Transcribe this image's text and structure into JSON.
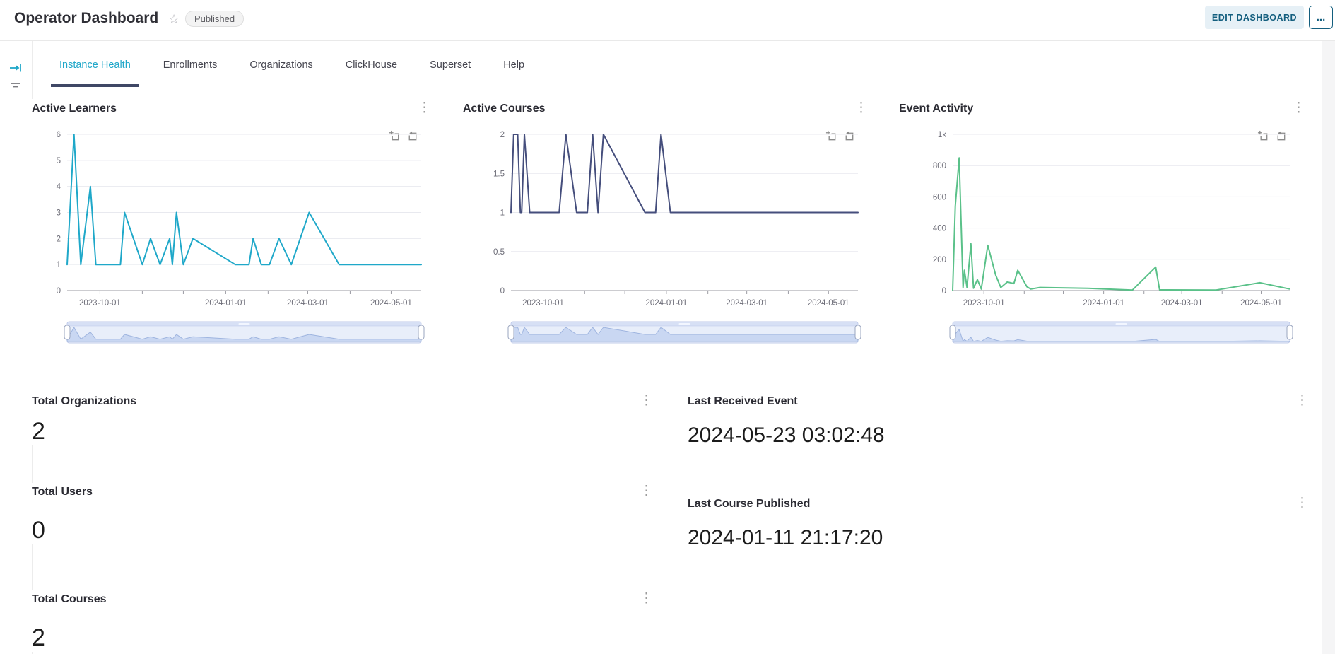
{
  "header": {
    "title": "Operator Dashboard",
    "status_badge": "Published",
    "edit_button": "EDIT DASHBOARD",
    "more_button": "..."
  },
  "icons": {
    "kebab": "⋮",
    "star": "☆"
  },
  "tabs": [
    {
      "label": "Instance Health",
      "active": true
    },
    {
      "label": "Enrollments",
      "active": false
    },
    {
      "label": "Organizations",
      "active": false
    },
    {
      "label": "ClickHouse",
      "active": false
    },
    {
      "label": "Superset",
      "active": false
    },
    {
      "label": "Help",
      "active": false
    }
  ],
  "chart_data": [
    {
      "type": "line",
      "title": "Active Learners",
      "color": "#1FA8C9",
      "y_max": 6,
      "y_ticks": [
        {
          "v": 0,
          "label": "0"
        },
        {
          "v": 1,
          "label": "1"
        },
        {
          "v": 2,
          "label": "2"
        },
        {
          "v": 3,
          "label": "3"
        },
        {
          "v": 4,
          "label": "4"
        },
        {
          "v": 5,
          "label": "5"
        },
        {
          "v": 6,
          "label": "6"
        }
      ],
      "x_axis": {
        "domain": [
          "2023-09-07",
          "2024-05-23"
        ],
        "ticks": [
          {
            "date": "2023-10-01",
            "label": "2023-10-01"
          },
          {
            "date": "2023-11-01"
          },
          {
            "date": "2023-12-01"
          },
          {
            "date": "2024-01-01",
            "label": "2024-01-01"
          },
          {
            "date": "2024-02-01"
          },
          {
            "date": "2024-03-01",
            "label": "2024-03-01"
          },
          {
            "date": "2024-04-01"
          },
          {
            "date": "2024-05-01",
            "label": "2024-05-01"
          }
        ]
      },
      "points": [
        [
          "2023-09-07",
          1
        ],
        [
          "2023-09-12",
          6
        ],
        [
          "2023-09-17",
          1
        ],
        [
          "2023-09-24",
          4
        ],
        [
          "2023-09-28",
          1
        ],
        [
          "2023-10-16",
          1
        ],
        [
          "2023-10-19",
          3
        ],
        [
          "2023-11-01",
          1
        ],
        [
          "2023-11-07",
          2
        ],
        [
          "2023-11-14",
          1
        ],
        [
          "2023-11-21",
          2
        ],
        [
          "2023-11-23",
          1
        ],
        [
          "2023-11-26",
          3
        ],
        [
          "2023-12-01",
          1
        ],
        [
          "2023-12-08",
          2
        ],
        [
          "2024-01-08",
          1
        ],
        [
          "2024-01-18",
          1
        ],
        [
          "2024-01-21",
          2
        ],
        [
          "2024-01-27",
          1
        ],
        [
          "2024-02-02",
          1
        ],
        [
          "2024-02-09",
          2
        ],
        [
          "2024-02-18",
          1
        ],
        [
          "2024-03-02",
          3
        ],
        [
          "2024-03-24",
          1
        ],
        [
          "2024-05-23",
          1
        ]
      ]
    },
    {
      "type": "line",
      "title": "Active Courses",
      "color": "#454E7C",
      "y_max": 2,
      "y_ticks": [
        {
          "v": 0,
          "label": "0"
        },
        {
          "v": 0.5,
          "label": "0.5"
        },
        {
          "v": 1,
          "label": "1"
        },
        {
          "v": 1.5,
          "label": "1.5"
        },
        {
          "v": 2,
          "label": "2"
        }
      ],
      "x_axis": {
        "domain": [
          "2023-09-07",
          "2024-05-23"
        ],
        "ticks": [
          {
            "date": "2023-10-01",
            "label": "2023-10-01"
          },
          {
            "date": "2023-11-01"
          },
          {
            "date": "2023-12-01"
          },
          {
            "date": "2024-01-01",
            "label": "2024-01-01"
          },
          {
            "date": "2024-02-01"
          },
          {
            "date": "2024-03-01",
            "label": "2024-03-01"
          },
          {
            "date": "2024-04-01"
          },
          {
            "date": "2024-05-01",
            "label": "2024-05-01"
          }
        ]
      },
      "points": [
        [
          "2023-09-07",
          1
        ],
        [
          "2023-09-09",
          2
        ],
        [
          "2023-09-12",
          2
        ],
        [
          "2023-09-14",
          1
        ],
        [
          "2023-09-15",
          1
        ],
        [
          "2023-09-17",
          2
        ],
        [
          "2023-09-21",
          1
        ],
        [
          "2023-10-13",
          1
        ],
        [
          "2023-10-18",
          2
        ],
        [
          "2023-10-26",
          1
        ],
        [
          "2023-11-03",
          1
        ],
        [
          "2023-11-07",
          2
        ],
        [
          "2023-11-11",
          1
        ],
        [
          "2023-11-15",
          2
        ],
        [
          "2023-12-16",
          1
        ],
        [
          "2023-12-24",
          1
        ],
        [
          "2023-12-28",
          2
        ],
        [
          "2024-01-04",
          1
        ],
        [
          "2024-05-23",
          1
        ]
      ]
    },
    {
      "type": "line",
      "title": "Event Activity",
      "color": "#5AC189",
      "y_max": 1000,
      "y_ticks": [
        {
          "v": 0,
          "label": "0"
        },
        {
          "v": 200,
          "label": "200"
        },
        {
          "v": 400,
          "label": "400"
        },
        {
          "v": 600,
          "label": "600"
        },
        {
          "v": 800,
          "label": "800"
        },
        {
          "v": 1000,
          "label": "1k"
        }
      ],
      "x_axis": {
        "domain": [
          "2023-09-07",
          "2024-05-23"
        ],
        "ticks": [
          {
            "date": "2023-10-01",
            "label": "2023-10-01"
          },
          {
            "date": "2023-11-01"
          },
          {
            "date": "2023-12-01"
          },
          {
            "date": "2024-01-01",
            "label": "2024-01-01"
          },
          {
            "date": "2024-02-01"
          },
          {
            "date": "2024-03-01",
            "label": "2024-03-01"
          },
          {
            "date": "2024-04-01"
          },
          {
            "date": "2024-05-01",
            "label": "2024-05-01"
          }
        ]
      },
      "points": [
        [
          "2023-09-07",
          0
        ],
        [
          "2023-09-09",
          540
        ],
        [
          "2023-09-12",
          850
        ],
        [
          "2023-09-15",
          20
        ],
        [
          "2023-09-16",
          130
        ],
        [
          "2023-09-18",
          20
        ],
        [
          "2023-09-21",
          300
        ],
        [
          "2023-09-23",
          15
        ],
        [
          "2023-09-26",
          70
        ],
        [
          "2023-09-29",
          10
        ],
        [
          "2023-10-04",
          290
        ],
        [
          "2023-10-10",
          100
        ],
        [
          "2023-10-14",
          20
        ],
        [
          "2023-10-19",
          55
        ],
        [
          "2023-10-24",
          45
        ],
        [
          "2023-10-27",
          130
        ],
        [
          "2023-11-03",
          25
        ],
        [
          "2023-11-06",
          10
        ],
        [
          "2023-11-13",
          20
        ],
        [
          "2023-12-20",
          15
        ],
        [
          "2024-01-23",
          3
        ],
        [
          "2024-02-10",
          150
        ],
        [
          "2024-02-13",
          5
        ],
        [
          "2024-03-27",
          3
        ],
        [
          "2024-04-30",
          50
        ],
        [
          "2024-05-23",
          10
        ]
      ]
    }
  ],
  "stats": {
    "left": [
      {
        "label": "Total Organizations",
        "value": "2"
      },
      {
        "label": "Total Users",
        "value": "0"
      },
      {
        "label": "Total Courses",
        "value": "2"
      }
    ],
    "right": [
      {
        "label": "Last Received Event",
        "value": "2024-05-23 03:02:48"
      },
      {
        "label": "Last Course Published",
        "value": "2024-01-11 21:17:20"
      }
    ]
  }
}
